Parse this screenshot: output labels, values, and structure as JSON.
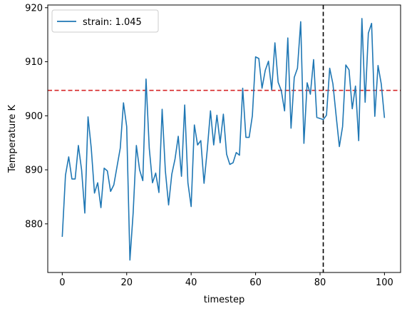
{
  "chart_data": {
    "type": "line",
    "title": "",
    "xlabel": "timestep",
    "ylabel": "Temperature K",
    "xlim": [
      -4.5,
      105
    ],
    "ylim": [
      871,
      920.5
    ],
    "xticks": [
      0,
      20,
      40,
      60,
      80,
      100
    ],
    "yticks": [
      880,
      890,
      900,
      910,
      920
    ],
    "grid": false,
    "legend_position": "top-left",
    "series": [
      {
        "name": "strain: 1.045",
        "color": "#1f77b4",
        "x": [
          0,
          1,
          2,
          3,
          4,
          5,
          6,
          7,
          8,
          9,
          10,
          11,
          12,
          13,
          14,
          15,
          16,
          17,
          18,
          19,
          20,
          21,
          22,
          23,
          24,
          25,
          26,
          27,
          28,
          29,
          30,
          31,
          32,
          33,
          34,
          35,
          36,
          37,
          38,
          39,
          40,
          41,
          42,
          43,
          44,
          45,
          46,
          47,
          48,
          49,
          50,
          51,
          52,
          53,
          54,
          55,
          56,
          57,
          58,
          59,
          60,
          61,
          62,
          63,
          64,
          65,
          66,
          67,
          68,
          69,
          70,
          71,
          72,
          73,
          74,
          75,
          76,
          77,
          78,
          79,
          80,
          81,
          82,
          83,
          84,
          85,
          86,
          87,
          88,
          89,
          90,
          91,
          92,
          93,
          94,
          95,
          96,
          97,
          98,
          99,
          100
        ],
        "values": [
          877.6,
          889.0,
          892.4,
          888.3,
          888.3,
          894.5,
          890.0,
          882.0,
          899.8,
          894.0,
          885.7,
          887.6,
          883.0,
          890.3,
          889.8,
          886.0,
          887.2,
          890.6,
          894.0,
          902.4,
          898.0,
          873.3,
          882.0,
          894.5,
          890.0,
          888.0,
          906.8,
          894.0,
          887.6,
          889.4,
          885.8,
          901.2,
          889.8,
          883.5,
          889.2,
          892.0,
          896.2,
          888.8,
          902.0,
          887.6,
          883.2,
          898.3,
          894.6,
          895.4,
          887.5,
          893.7,
          900.9,
          894.6,
          900.1,
          895.0,
          900.3,
          892.9,
          891.0,
          891.3,
          893.2,
          892.7,
          905.1,
          896.0,
          896.0,
          900.0,
          910.9,
          910.6,
          905.1,
          908.4,
          910.1,
          904.8,
          913.5,
          906.2,
          904.6,
          900.9,
          914.4,
          897.7,
          907.1,
          908.8,
          917.4,
          894.9,
          906.1,
          904.0,
          910.4,
          899.7,
          899.5,
          899.3,
          900.1,
          908.8,
          905.9,
          900.0,
          894.3,
          898.0,
          909.4,
          908.5,
          901.3,
          905.5,
          895.4,
          918.0,
          902.5,
          915.3,
          917.1,
          899.9,
          909.3,
          905.9,
          899.6
        ]
      }
    ],
    "reference_lines": [
      {
        "orientation": "horizontal",
        "value": 904.7,
        "color": "#d62728",
        "style": "dashed"
      },
      {
        "orientation": "vertical",
        "value": 81,
        "color": "#000000",
        "style": "dashed"
      }
    ]
  }
}
